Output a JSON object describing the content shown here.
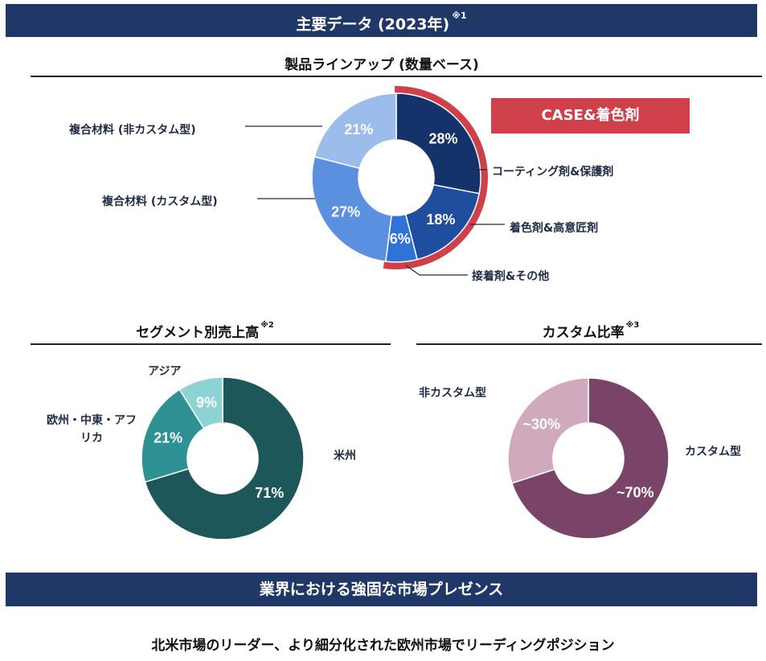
{
  "header": {
    "title": "主要データ (2023年)",
    "note": "※1"
  },
  "case_label": "CASE&着色剤",
  "footer": {
    "banner": "業界における強固な市場プレゼンス",
    "tagline": "北米市場のリーダー、より細分化された欧州市場でリーディングポジション"
  },
  "colors": {
    "banner_bg": "#1f3868",
    "case_red": "#d0404b",
    "product": [
      "#14336b",
      "#1f4e9e",
      "#2f73d6",
      "#5b8fdf",
      "#9cbdeb"
    ],
    "segment": [
      "#1e5759",
      "#2e9294",
      "#8dd3d6"
    ],
    "custom": [
      "#7a4469",
      "#d1a9bd"
    ]
  },
  "chart_data": [
    {
      "type": "pie",
      "title": "製品ラインアップ (数量ベース)",
      "slices": [
        {
          "label": "コーティング剤&保護剤",
          "value": 28,
          "value_label": "28%"
        },
        {
          "label": "着色剤&高意匠剤",
          "value": 18,
          "value_label": "18%"
        },
        {
          "label": "接着剤&その他",
          "value": 6,
          "value_label": "6%"
        },
        {
          "label": "複合材料 (カスタム型)",
          "value": 27,
          "value_label": "27%"
        },
        {
          "label": "複合材料 (非カスタム型)",
          "value": 21,
          "value_label": "21%"
        }
      ]
    },
    {
      "type": "pie",
      "title": "セグメント別売上高",
      "note": "※2",
      "slices": [
        {
          "label": "米州",
          "value": 71,
          "value_label": "71%"
        },
        {
          "label": "欧州・中東・アフリカ",
          "value": 21,
          "value_label": "21%"
        },
        {
          "label": "アジア",
          "value": 9,
          "value_label": "9%"
        }
      ]
    },
    {
      "type": "pie",
      "title": "カスタム比率",
      "note": "※3",
      "slices": [
        {
          "label": "カスタム型",
          "value": 70,
          "value_label": "~70%"
        },
        {
          "label": "非カスタム型",
          "value": 30,
          "value_label": "~30%"
        }
      ]
    }
  ]
}
